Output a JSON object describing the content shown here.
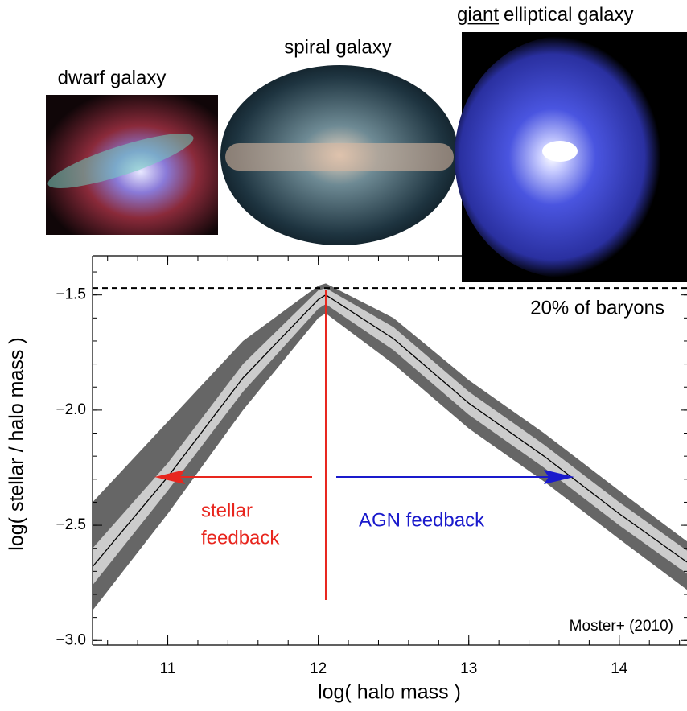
{
  "chart_data": {
    "type": "band-line",
    "x_label": "log( halo mass )",
    "y_label": "log( stellar / halo mass )",
    "x": [
      10.5,
      11,
      11.5,
      12,
      12.05,
      12.5,
      13,
      13.5,
      14,
      14.45
    ],
    "center": {
      "color": "#000000",
      "values": [
        -2.68,
        -2.29,
        -1.86,
        -1.52,
        -1.5,
        -1.69,
        -1.97,
        -2.2,
        -2.45,
        -2.66
      ]
    },
    "bands": [
      {
        "color": "#666666",
        "upper": [
          -2.4,
          -2.05,
          -1.7,
          -1.46,
          -1.45,
          -1.6,
          -1.87,
          -2.1,
          -2.35,
          -2.57
        ],
        "lower": [
          -2.87,
          -2.45,
          -2.0,
          -1.6,
          -1.58,
          -1.8,
          -2.08,
          -2.31,
          -2.56,
          -2.78
        ]
      },
      {
        "color": "#cccccc",
        "upper": [
          -2.6,
          -2.23,
          -1.8,
          -1.48,
          -1.47,
          -1.64,
          -1.92,
          -2.15,
          -2.4,
          -2.61
        ],
        "lower": [
          -2.76,
          -2.35,
          -1.92,
          -1.56,
          -1.54,
          -1.74,
          -2.02,
          -2.25,
          -2.5,
          -2.71
        ]
      }
    ],
    "xlim": [
      10.5,
      14.45
    ],
    "ylim": [
      -3.02,
      -1.33
    ],
    "xticks": [
      11,
      12,
      13,
      14
    ],
    "yticks": [
      {
        "value": -1.5,
        "label": "−1.5"
      },
      {
        "value": -2.0,
        "label": "−2.0"
      },
      {
        "value": -2.5,
        "label": "−2.5"
      },
      {
        "value": -3.0,
        "label": "−3.0"
      }
    ],
    "hline": {
      "y": -1.47,
      "label": "20% of baryons"
    },
    "vline": {
      "x": 12.05,
      "color": "#e8261e"
    },
    "stellar_label": [
      "stellar",
      "feedback"
    ],
    "agn_label": "AGN feedback",
    "credit": "Moster+ (2010)",
    "galaxy_labels": [
      "dwarf galaxy",
      "spiral galaxy"
    ],
    "elliptical_label": [
      "giant",
      "elliptical galaxy"
    ]
  }
}
